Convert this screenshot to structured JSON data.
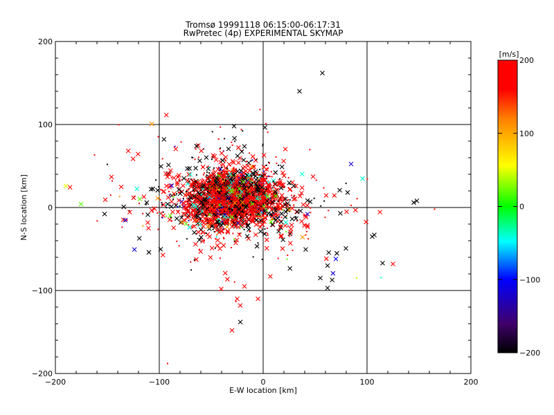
{
  "chart_data": {
    "type": "scatter",
    "title": "Tromsø 19991118 06:15:00-06:17:31",
    "subtitle": "RwPretec (4p) EXPERIMENTAL SKYMAP",
    "xlabel": "E-W location [km]",
    "ylabel": "N-S location [km]",
    "xlim": [
      -200,
      200
    ],
    "ylim": [
      -200,
      200
    ],
    "xticks": [
      -200,
      -100,
      0,
      100,
      200
    ],
    "yticks": [
      -200,
      -100,
      0,
      100,
      200
    ],
    "grid": true,
    "colorbar": {
      "label": "[m/s]",
      "min": -200,
      "max": 200,
      "ticks": [
        -200,
        -100,
        0,
        100,
        200
      ],
      "colormap": "black-purple-blue-cyan-green-yellow-red"
    },
    "marker_types": [
      "x",
      "dot"
    ],
    "cluster": {
      "center": [
        -30,
        10
      ],
      "spread_x": 40,
      "spread_y": 28,
      "estimated_points": 2500,
      "dominant_velocity": 200
    },
    "outliers": [
      {
        "x": 57,
        "y": 162,
        "v": -200,
        "marker": "x"
      },
      {
        "x": 35,
        "y": 140,
        "v": -200,
        "marker": "x"
      },
      {
        "x": -3,
        "y": 118,
        "v": 200,
        "marker": "dot"
      },
      {
        "x": -28,
        "y": 98,
        "v": -200,
        "marker": "x"
      },
      {
        "x": -190,
        "y": 26,
        "v": 50,
        "marker": "x"
      },
      {
        "x": -150,
        "y": 52,
        "v": -200,
        "marker": "dot"
      },
      {
        "x": 145,
        "y": 6,
        "v": -200,
        "marker": "x"
      },
      {
        "x": 148,
        "y": 8,
        "v": -200,
        "marker": "x"
      },
      {
        "x": 165,
        "y": -2,
        "v": 200,
        "marker": "dot"
      },
      {
        "x": 125,
        "y": -68,
        "v": 200,
        "marker": "x"
      },
      {
        "x": 115,
        "y": -67,
        "v": -200,
        "marker": "x"
      },
      {
        "x": 107,
        "y": -33,
        "v": -200,
        "marker": "x"
      },
      {
        "x": 105,
        "y": -35,
        "v": -200,
        "marker": "x"
      },
      {
        "x": 90,
        "y": -85,
        "v": 40,
        "marker": "dot"
      },
      {
        "x": 62,
        "y": -97,
        "v": -200,
        "marker": "x"
      },
      {
        "x": -110,
        "y": -54,
        "v": -200,
        "marker": "x"
      },
      {
        "x": -30,
        "y": -148,
        "v": 200,
        "marker": "x"
      },
      {
        "x": -22,
        "y": -138,
        "v": -200,
        "marker": "x"
      },
      {
        "x": -92,
        "y": -188,
        "v": 200,
        "marker": "dot"
      },
      {
        "x": -5,
        "y": -110,
        "v": 200,
        "marker": "x"
      },
      {
        "x": -25,
        "y": -110,
        "v": 200,
        "marker": "x"
      },
      {
        "x": -22,
        "y": -118,
        "v": 200,
        "marker": "x"
      },
      {
        "x": -18,
        "y": -95,
        "v": 200,
        "marker": "x"
      },
      {
        "x": 55,
        "y": -85,
        "v": -200,
        "marker": "x"
      },
      {
        "x": 62,
        "y": -70,
        "v": -200,
        "marker": "x"
      },
      {
        "x": 70,
        "y": -62,
        "v": -100,
        "marker": "x"
      }
    ]
  }
}
